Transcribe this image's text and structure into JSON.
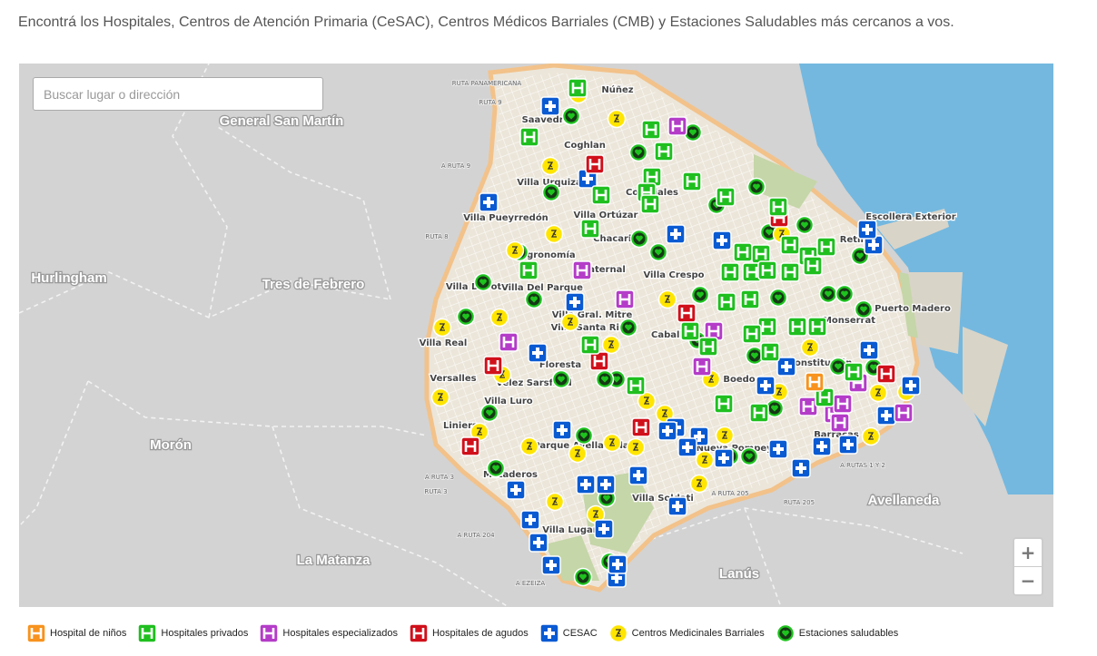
{
  "intro": "Encontrá los Hospitales, Centros de Atención Primaria (CeSAC), Centros Médicos Barriales (CMB) y Estaciones Saludables más cercanos a vos.",
  "search_placeholder": "Buscar lugar o dirección",
  "map": {
    "regions": [
      "General San Martín",
      "Hurlingham",
      "Tres de Febrero",
      "Morón",
      "La Matanza",
      "Lanús",
      "Avellaneda"
    ],
    "neighborhoods": [
      "Núñez",
      "Saavedra",
      "Coghlan",
      "Villa Urquiza",
      "Colegiales",
      "Villa Pueyrredón",
      "Villa Ortúzar",
      "Chacarita",
      "Agronomía",
      "Paternal",
      "Villa Crespo",
      "Villa Devoto",
      "Villa Del Parque",
      "Villa Gral. Mitre",
      "Villa Santa Rita",
      "Caballito",
      "Villa Real",
      "Floresta",
      "Versalles",
      "Vélez Sarsfield",
      "Villa Luro",
      "Liniers",
      "Parque Avellaneda",
      "Mataderos",
      "Villa Soldati",
      "Villa Lugano",
      "Nueva Pompeya",
      "Boedo",
      "Barracas",
      "Constitución",
      "Monserrat",
      "Retiro",
      "Puerto Madero",
      "Escollera Exterior"
    ],
    "roads": [
      "RUTA PANAMERICANA",
      "RUTA 9",
      "A RUTA 9",
      "RUTA 8",
      "A RUTA 3",
      "RUTA 3",
      "A RUTA 204",
      "A EZEIZA",
      "A RUTA 205",
      "RUTA 205",
      "A RUTAS 1 Y 2"
    ]
  },
  "zoom": {
    "in": "+",
    "out": "−"
  },
  "legend": [
    "Hospital de niños",
    "Hospitales privados",
    "Hospitales especializados",
    "Hospitales de agudos",
    "CESAC",
    "Centros Medicinales Barriales",
    "Estaciones saludables"
  ]
}
